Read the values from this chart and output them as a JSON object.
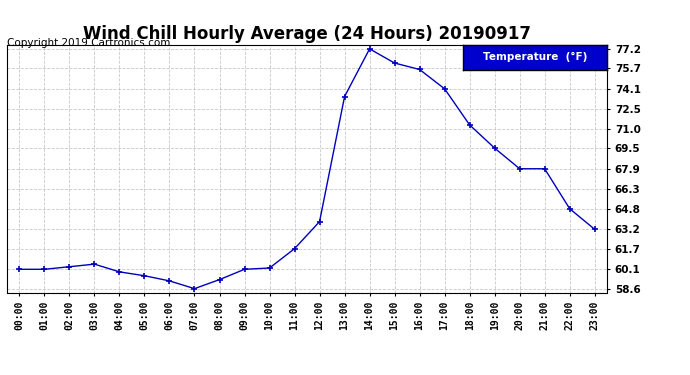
{
  "title": "Wind Chill Hourly Average (24 Hours) 20190917",
  "copyright": "Copyright 2019 Cartronics.com",
  "legend_label": "Temperature  (°F)",
  "x_labels": [
    "00:00",
    "01:00",
    "02:00",
    "03:00",
    "04:00",
    "05:00",
    "06:00",
    "07:00",
    "08:00",
    "09:00",
    "10:00",
    "11:00",
    "12:00",
    "13:00",
    "14:00",
    "15:00",
    "16:00",
    "17:00",
    "18:00",
    "19:00",
    "20:00",
    "21:00",
    "22:00",
    "23:00"
  ],
  "y_values": [
    60.1,
    60.1,
    60.3,
    60.5,
    59.9,
    59.6,
    59.2,
    58.6,
    59.3,
    60.1,
    60.2,
    61.7,
    63.8,
    73.5,
    77.2,
    76.1,
    75.6,
    74.1,
    71.3,
    69.5,
    67.9,
    67.9,
    64.8,
    63.2
  ],
  "ylim_min": 58.6,
  "ylim_max": 77.2,
  "yticks": [
    58.6,
    60.1,
    61.7,
    63.2,
    64.8,
    66.3,
    67.9,
    69.5,
    71.0,
    72.5,
    74.1,
    75.7,
    77.2
  ],
  "line_color": "#0000bb",
  "marker": "+",
  "bg_color": "#ffffff",
  "grid_color": "#bbbbbb",
  "title_fontsize": 12,
  "copyright_fontsize": 7.5,
  "legend_bg": "#0000cc",
  "legend_text_color": "#ffffff"
}
